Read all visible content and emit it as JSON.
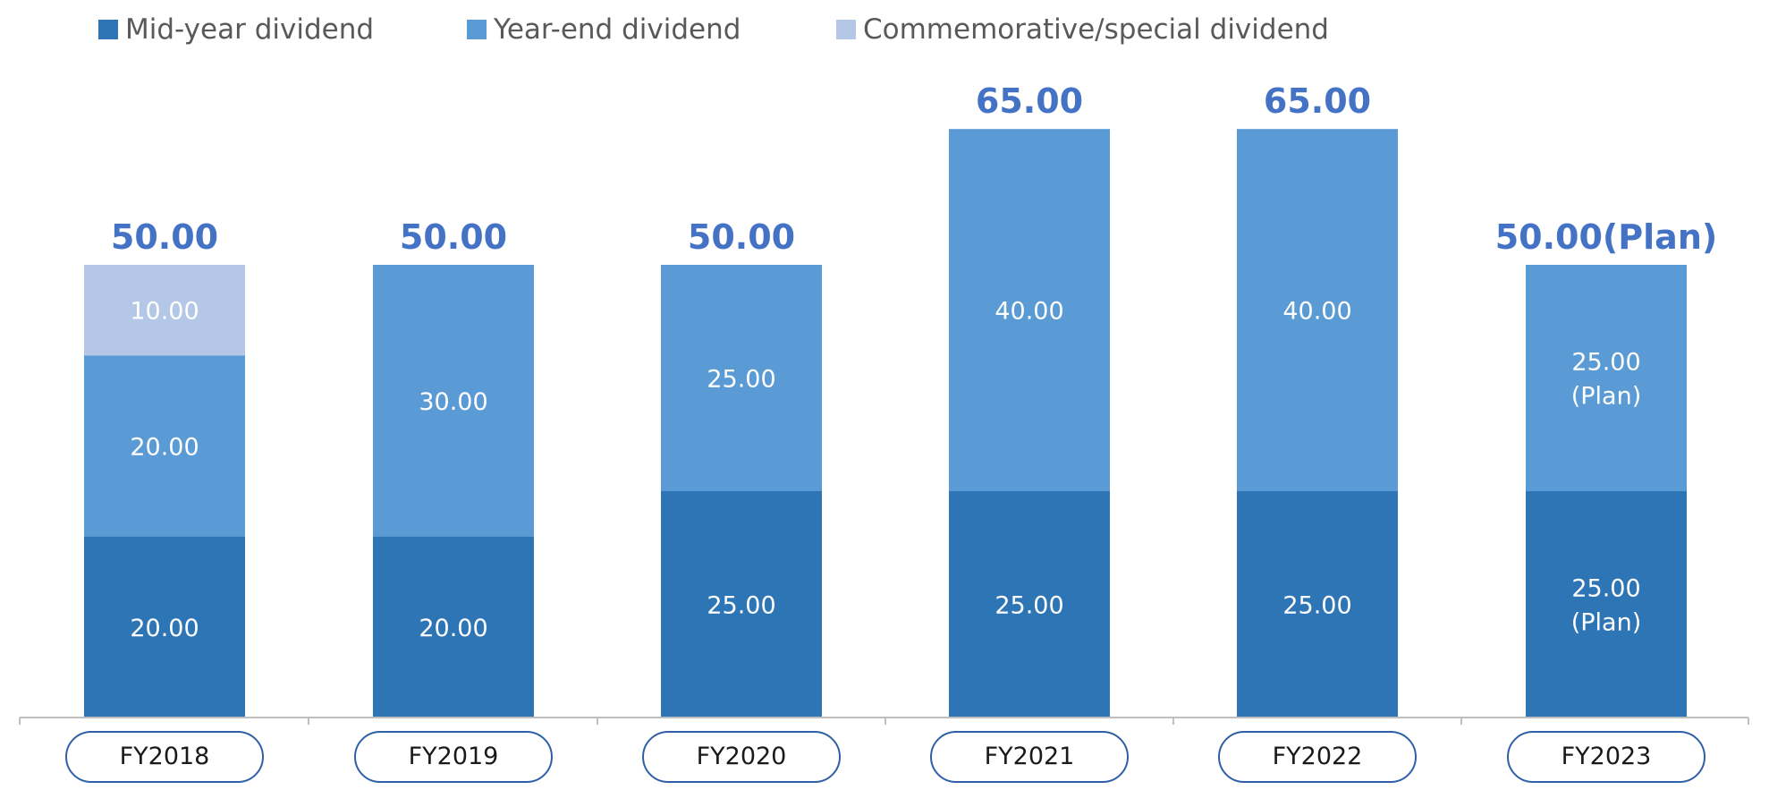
{
  "chart_data": {
    "type": "bar",
    "stacked": true,
    "categories": [
      "FY2018",
      "FY2019",
      "FY2020",
      "FY2021",
      "FY2022",
      "FY2023"
    ],
    "series": [
      {
        "name": "Mid-year dividend",
        "color": "#2E75B6",
        "values": [
          20,
          20,
          25,
          25,
          25,
          25
        ],
        "labels": [
          "20.00",
          "20.00",
          "25.00",
          "25.00",
          "25.00",
          "25.00\n(Plan)"
        ]
      },
      {
        "name": "Year-end dividend",
        "color": "#5B9BD5",
        "values": [
          20,
          30,
          25,
          40,
          40,
          25
        ],
        "labels": [
          "20.00",
          "30.00",
          "25.00",
          "40.00",
          "40.00",
          "25.00\n(Plan)"
        ]
      },
      {
        "name": "Commemorative/special dividend",
        "color": "#B4C7E7",
        "values": [
          10,
          0,
          0,
          0,
          0,
          0
        ],
        "labels": [
          "10.00",
          "",
          "",
          "",
          "",
          ""
        ]
      }
    ],
    "totals": [
      "50.00",
      "50.00",
      "50.00",
      "65.00",
      "65.00",
      "50.00(Plan)"
    ],
    "ylim": [
      0,
      65
    ],
    "grid": false,
    "legend_position": "top-left"
  }
}
